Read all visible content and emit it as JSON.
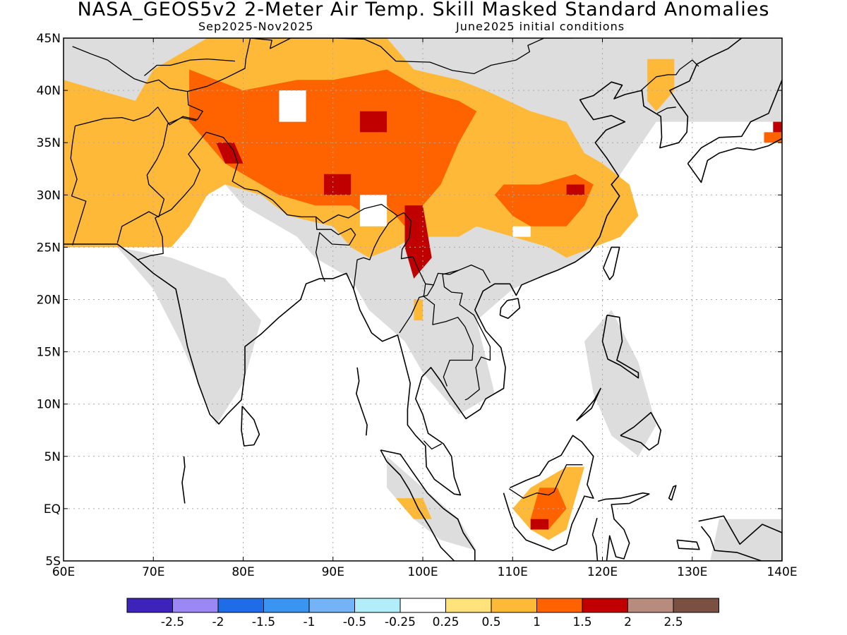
{
  "header": {
    "title": "NASA_GEOS5v2 2-Meter Air Temp. Skill Masked Standard Anomalies",
    "period": "Sep2025-Nov2025",
    "init": "June2025 initial conditions"
  },
  "map": {
    "lon_range": [
      60,
      140
    ],
    "lat_range": [
      -5,
      45
    ],
    "lon_ticks": [
      {
        "value": 60,
        "label": "60E"
      },
      {
        "value": 70,
        "label": "70E"
      },
      {
        "value": 80,
        "label": "80E"
      },
      {
        "value": 90,
        "label": "90E"
      },
      {
        "value": 100,
        "label": "100E"
      },
      {
        "value": 110,
        "label": "110E"
      },
      {
        "value": 120,
        "label": "120E"
      },
      {
        "value": 130,
        "label": "130E"
      },
      {
        "value": 140,
        "label": "140E"
      }
    ],
    "lat_ticks": [
      {
        "value": 45,
        "label": "45N"
      },
      {
        "value": 40,
        "label": "40N"
      },
      {
        "value": 35,
        "label": "35N"
      },
      {
        "value": 30,
        "label": "30N"
      },
      {
        "value": 25,
        "label": "25N"
      },
      {
        "value": 20,
        "label": "20N"
      },
      {
        "value": 15,
        "label": "15N"
      },
      {
        "value": 10,
        "label": "10N"
      },
      {
        "value": 5,
        "label": "5N"
      },
      {
        "value": 0,
        "label": "EQ"
      },
      {
        "value": -5,
        "label": "5S"
      }
    ],
    "colors": {
      "masked": "#dddddd",
      "a0_25": "#ffe27a",
      "a0_5": "#ffb938",
      "a1": "#ff6300",
      "a1_5": "#c00000",
      "coast": "#000000",
      "grid": "#aaaaaa"
    }
  },
  "colorbar": {
    "colors": [
      "#3d23b9",
      "#9c88f5",
      "#1f6de6",
      "#3a94f2",
      "#74b3f7",
      "#b2eef9",
      "#ffffff",
      "#ffe27a",
      "#ffb938",
      "#ff6300",
      "#c00000",
      "#b78c7e",
      "#7a5043"
    ],
    "labels": [
      "-2.5",
      "-2",
      "-1.5",
      "-1",
      "-0.5",
      "-0.25",
      "0.25",
      "0.5",
      "1",
      "1.5",
      "2",
      "2.5"
    ]
  }
}
